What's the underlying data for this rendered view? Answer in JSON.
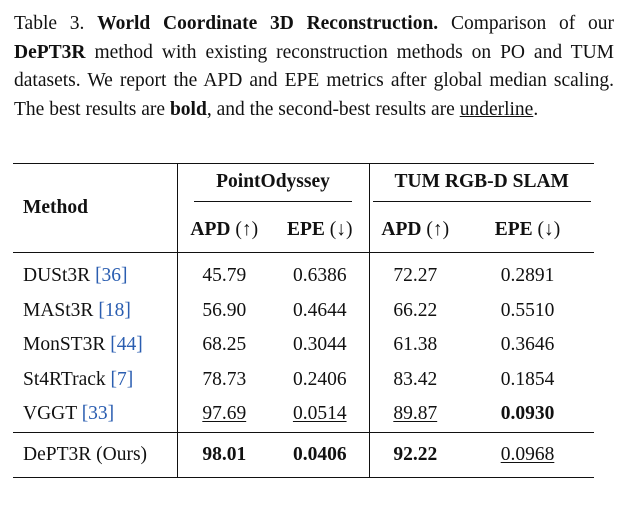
{
  "caption": {
    "label": "Table 3.",
    "title": "World Coordinate 3D Reconstruction.",
    "text_1": "Comparison of our",
    "method_name": "DePT3R",
    "text_2": "method with existing reconstruction methods on PO and TUM datasets. We report the APD and EPE metrics after global median scaling. The best results are",
    "bold_word": "bold",
    "text_3": ", and the second-best results are",
    "underline_word": "underline",
    "text_4": "."
  },
  "table": {
    "method_header": "Method",
    "groups": [
      "PointOdyssey",
      "TUM RGB-D SLAM"
    ],
    "columns": [
      {
        "name": "APD",
        "arrow": "(↑)"
      },
      {
        "name": "EPE",
        "arrow": "(↓)"
      },
      {
        "name": "APD",
        "arrow": "(↑)"
      },
      {
        "name": "EPE",
        "arrow": "(↓)"
      }
    ],
    "rows": [
      {
        "method": "DUSt3R",
        "ref": "[36]",
        "values": [
          "45.79",
          "0.6386",
          "72.27",
          "0.2891"
        ]
      },
      {
        "method": "MASt3R",
        "ref": "[18]",
        "values": [
          "56.90",
          "0.4644",
          "66.22",
          "0.5510"
        ]
      },
      {
        "method": "MonST3R",
        "ref": "[44]",
        "values": [
          "68.25",
          "0.3044",
          "61.38",
          "0.3646"
        ]
      },
      {
        "method": "St4RTrack",
        "ref": "[7]",
        "values": [
          "78.73",
          "0.2406",
          "83.42",
          "0.1854"
        ]
      },
      {
        "method": "VGGT",
        "ref": "[33]",
        "values": [
          "97.69",
          "0.0514",
          "89.87",
          "0.0930"
        ]
      }
    ],
    "ours": {
      "method": "DePT3R (Ours)",
      "values": [
        "98.01",
        "0.0406",
        "92.22",
        "0.0968"
      ]
    }
  }
}
